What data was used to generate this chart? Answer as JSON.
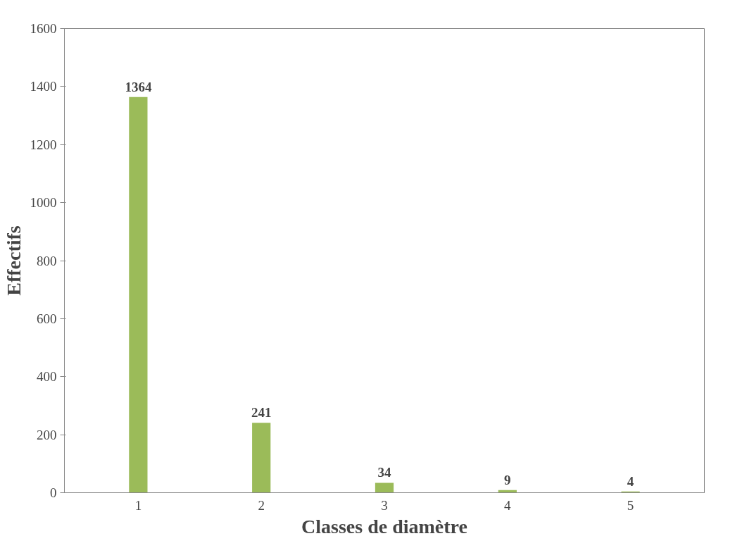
{
  "chart_data": {
    "type": "bar",
    "xlabel": "Classes de diamètre",
    "ylabel": "Effectifs",
    "categories": [
      "1",
      "2",
      "3",
      "4",
      "5"
    ],
    "values": [
      1364,
      241,
      34,
      9,
      4
    ],
    "color": "#9bbb59",
    "ylim": [
      0,
      1600
    ],
    "yticks": [
      0,
      200,
      400,
      600,
      800,
      1000,
      1200,
      1400,
      1600
    ],
    "grid": false,
    "data_labels": true
  }
}
